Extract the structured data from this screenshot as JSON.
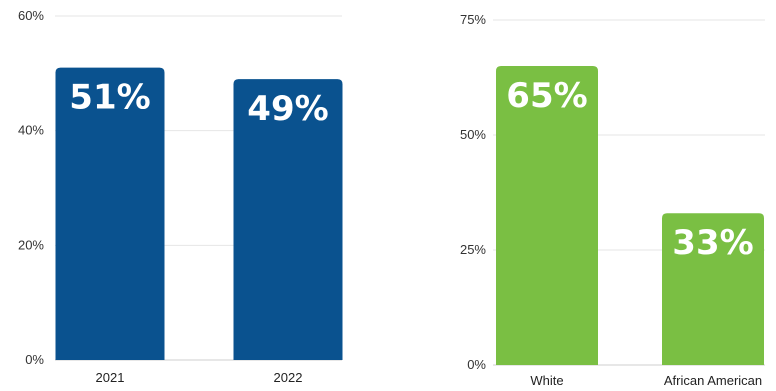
{
  "chart_data": [
    {
      "type": "bar",
      "categories": [
        "2021",
        "2022"
      ],
      "values": [
        51,
        49
      ],
      "data_labels": [
        "51%",
        "49%"
      ],
      "ylim": [
        0,
        60
      ],
      "yticks": [
        0,
        20,
        40,
        60
      ],
      "ytick_labels": [
        "0%",
        "20%",
        "40%",
        "60%"
      ],
      "bar_color": "#0a528f",
      "grid": true,
      "title": "",
      "xlabel": "",
      "ylabel": ""
    },
    {
      "type": "bar",
      "categories": [
        "White",
        "African American"
      ],
      "values": [
        65,
        33
      ],
      "data_labels": [
        "65%",
        "33%"
      ],
      "ylim": [
        0,
        75
      ],
      "yticks": [
        0,
        25,
        50,
        75
      ],
      "ytick_labels": [
        "0%",
        "25%",
        "50%",
        "75%"
      ],
      "bar_color": "#7abf43",
      "grid": true,
      "title": "",
      "xlabel": "",
      "ylabel": ""
    }
  ]
}
